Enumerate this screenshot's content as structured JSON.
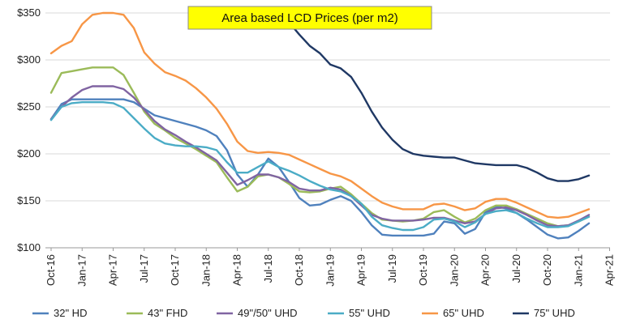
{
  "chart_data": {
    "type": "line",
    "title": "Area based LCD Prices (per m2)",
    "xlabel": "",
    "ylabel": "",
    "ylim": [
      100,
      350
    ],
    "yticks": [
      "$100",
      "$150",
      "$200",
      "$250",
      "$300",
      "$350"
    ],
    "ytick_values": [
      100,
      150,
      200,
      250,
      300,
      350
    ],
    "x_start": "Oct-16",
    "x_end": "Jun-21",
    "xtick_labels": [
      "Oct-16",
      "Jan-17",
      "Apr-17",
      "Jul-17",
      "Oct-17",
      "Jan-18",
      "Apr-18",
      "Jul-18",
      "Oct-18",
      "Jan-19",
      "Apr-19",
      "Jul-19",
      "Oct-19",
      "Jan-20",
      "Apr-20",
      "Jul-20",
      "Oct-20",
      "Jan-21",
      "Apr-21"
    ],
    "grid": "horizontal",
    "legend": "bottom",
    "series": [
      {
        "name": "32\" HD",
        "color": "#4f81bd",
        "values": [
          [
            0,
            237
          ],
          [
            1,
            253
          ],
          [
            2,
            258
          ],
          [
            3,
            258
          ],
          [
            4,
            258
          ],
          [
            5,
            258
          ],
          [
            6,
            258
          ],
          [
            7,
            258
          ],
          [
            8,
            255
          ],
          [
            9,
            248
          ],
          [
            10,
            241
          ],
          [
            11,
            238
          ],
          [
            12,
            235
          ],
          [
            13,
            232
          ],
          [
            14,
            229
          ],
          [
            15,
            225
          ],
          [
            16,
            219
          ],
          [
            17,
            204
          ],
          [
            18,
            178
          ],
          [
            19,
            165
          ],
          [
            20,
            178
          ],
          [
            21,
            195
          ],
          [
            22,
            186
          ],
          [
            23,
            170
          ],
          [
            24,
            153
          ],
          [
            25,
            145
          ],
          [
            26,
            146
          ],
          [
            27,
            151
          ],
          [
            28,
            155
          ],
          [
            29,
            150
          ],
          [
            30,
            138
          ],
          [
            31,
            124
          ],
          [
            32,
            114
          ],
          [
            33,
            113
          ],
          [
            34,
            113
          ],
          [
            35,
            113
          ],
          [
            36,
            113
          ],
          [
            37,
            115
          ],
          [
            38,
            128
          ],
          [
            39,
            126
          ],
          [
            40,
            115
          ],
          [
            41,
            120
          ],
          [
            42,
            138
          ],
          [
            43,
            144
          ],
          [
            44,
            142
          ],
          [
            45,
            137
          ],
          [
            46,
            130
          ],
          [
            47,
            122
          ],
          [
            48,
            114
          ],
          [
            49,
            110
          ],
          [
            50,
            111
          ],
          [
            51,
            118
          ],
          [
            52,
            126
          ]
        ]
      },
      {
        "name": "43\" FHD",
        "color": "#9bbb59",
        "values": [
          [
            0,
            265
          ],
          [
            1,
            286
          ],
          [
            2,
            288
          ],
          [
            3,
            290
          ],
          [
            4,
            292
          ],
          [
            5,
            292
          ],
          [
            6,
            292
          ],
          [
            7,
            284
          ],
          [
            8,
            265
          ],
          [
            9,
            245
          ],
          [
            10,
            232
          ],
          [
            11,
            225
          ],
          [
            12,
            217
          ],
          [
            13,
            211
          ],
          [
            14,
            205
          ],
          [
            15,
            198
          ],
          [
            16,
            191
          ],
          [
            17,
            175
          ],
          [
            18,
            160
          ],
          [
            19,
            165
          ],
          [
            20,
            176
          ],
          [
            21,
            178
          ],
          [
            22,
            175
          ],
          [
            23,
            168
          ],
          [
            24,
            160
          ],
          [
            25,
            159
          ],
          [
            26,
            160
          ],
          [
            27,
            163
          ],
          [
            28,
            165
          ],
          [
            29,
            157
          ],
          [
            30,
            147
          ],
          [
            31,
            137
          ],
          [
            32,
            130
          ],
          [
            33,
            129
          ],
          [
            34,
            128
          ],
          [
            35,
            129
          ],
          [
            36,
            131
          ],
          [
            37,
            138
          ],
          [
            38,
            140
          ],
          [
            39,
            133
          ],
          [
            40,
            127
          ],
          [
            41,
            131
          ],
          [
            42,
            140
          ],
          [
            43,
            145
          ],
          [
            44,
            145
          ],
          [
            45,
            141
          ],
          [
            46,
            136
          ],
          [
            47,
            131
          ],
          [
            48,
            126
          ],
          [
            49,
            123
          ],
          [
            50,
            124
          ],
          [
            51,
            128
          ],
          [
            52,
            133
          ]
        ]
      },
      {
        "name": "49\"/50\" UHD",
        "color": "#8064a2",
        "values": [
          [
            0,
            237
          ],
          [
            1,
            250
          ],
          [
            2,
            260
          ],
          [
            3,
            268
          ],
          [
            4,
            272
          ],
          [
            5,
            272
          ],
          [
            6,
            272
          ],
          [
            7,
            269
          ],
          [
            8,
            260
          ],
          [
            9,
            247
          ],
          [
            10,
            235
          ],
          [
            11,
            226
          ],
          [
            12,
            220
          ],
          [
            13,
            213
          ],
          [
            14,
            207
          ],
          [
            15,
            200
          ],
          [
            16,
            193
          ],
          [
            17,
            180
          ],
          [
            18,
            167
          ],
          [
            19,
            172
          ],
          [
            20,
            178
          ],
          [
            21,
            178
          ],
          [
            22,
            175
          ],
          [
            23,
            170
          ],
          [
            24,
            163
          ],
          [
            25,
            161
          ],
          [
            26,
            161
          ],
          [
            27,
            164
          ],
          [
            28,
            162
          ],
          [
            29,
            155
          ],
          [
            30,
            145
          ],
          [
            31,
            135
          ],
          [
            32,
            131
          ],
          [
            33,
            129
          ],
          [
            34,
            129
          ],
          [
            35,
            129
          ],
          [
            36,
            130
          ],
          [
            37,
            132
          ],
          [
            38,
            132
          ],
          [
            39,
            129
          ],
          [
            40,
            126
          ],
          [
            41,
            128
          ],
          [
            42,
            136
          ],
          [
            43,
            142
          ],
          [
            44,
            143
          ],
          [
            45,
            140
          ],
          [
            46,
            135
          ],
          [
            47,
            129
          ],
          [
            48,
            124
          ],
          [
            49,
            123
          ],
          [
            50,
            124
          ],
          [
            51,
            129
          ],
          [
            52,
            135
          ]
        ]
      },
      {
        "name": "55\" UHD",
        "color": "#4bacc6",
        "values": [
          [
            0,
            236
          ],
          [
            1,
            250
          ],
          [
            2,
            254
          ],
          [
            3,
            255
          ],
          [
            4,
            255
          ],
          [
            5,
            255
          ],
          [
            6,
            254
          ],
          [
            7,
            249
          ],
          [
            8,
            238
          ],
          [
            9,
            227
          ],
          [
            10,
            217
          ],
          [
            11,
            211
          ],
          [
            12,
            209
          ],
          [
            13,
            208
          ],
          [
            14,
            208
          ],
          [
            15,
            207
          ],
          [
            16,
            204
          ],
          [
            17,
            191
          ],
          [
            18,
            180
          ],
          [
            19,
            180
          ],
          [
            20,
            186
          ],
          [
            21,
            192
          ],
          [
            22,
            186
          ],
          [
            23,
            182
          ],
          [
            24,
            177
          ],
          [
            25,
            171
          ],
          [
            26,
            166
          ],
          [
            27,
            162
          ],
          [
            28,
            160
          ],
          [
            29,
            155
          ],
          [
            30,
            147
          ],
          [
            31,
            133
          ],
          [
            32,
            124
          ],
          [
            33,
            121
          ],
          [
            34,
            119
          ],
          [
            35,
            119
          ],
          [
            36,
            122
          ],
          [
            37,
            130
          ],
          [
            38,
            131
          ],
          [
            39,
            128
          ],
          [
            40,
            122
          ],
          [
            41,
            127
          ],
          [
            42,
            136
          ],
          [
            43,
            139
          ],
          [
            44,
            140
          ],
          [
            45,
            137
          ],
          [
            46,
            131
          ],
          [
            47,
            126
          ],
          [
            48,
            122
          ],
          [
            49,
            122
          ],
          [
            50,
            123
          ],
          [
            51,
            128
          ],
          [
            52,
            133
          ]
        ]
      },
      {
        "name": "65\" UHD",
        "color": "#f79646",
        "values": [
          [
            0,
            307
          ],
          [
            1,
            315
          ],
          [
            2,
            320
          ],
          [
            3,
            338
          ],
          [
            4,
            348
          ],
          [
            5,
            350
          ],
          [
            6,
            350
          ],
          [
            7,
            348
          ],
          [
            8,
            334
          ],
          [
            9,
            308
          ],
          [
            10,
            296
          ],
          [
            11,
            287
          ],
          [
            12,
            283
          ],
          [
            13,
            278
          ],
          [
            14,
            270
          ],
          [
            15,
            260
          ],
          [
            16,
            248
          ],
          [
            17,
            232
          ],
          [
            18,
            213
          ],
          [
            19,
            203
          ],
          [
            20,
            201
          ],
          [
            21,
            202
          ],
          [
            22,
            201
          ],
          [
            23,
            199
          ],
          [
            24,
            194
          ],
          [
            25,
            189
          ],
          [
            26,
            184
          ],
          [
            27,
            179
          ],
          [
            28,
            176
          ],
          [
            29,
            171
          ],
          [
            30,
            163
          ],
          [
            31,
            155
          ],
          [
            32,
            148
          ],
          [
            33,
            144
          ],
          [
            34,
            141
          ],
          [
            35,
            141
          ],
          [
            36,
            141
          ],
          [
            37,
            146
          ],
          [
            38,
            147
          ],
          [
            39,
            144
          ],
          [
            40,
            140
          ],
          [
            41,
            142
          ],
          [
            42,
            149
          ],
          [
            43,
            152
          ],
          [
            44,
            152
          ],
          [
            45,
            148
          ],
          [
            46,
            143
          ],
          [
            47,
            138
          ],
          [
            48,
            133
          ],
          [
            49,
            132
          ],
          [
            50,
            133
          ],
          [
            51,
            137
          ],
          [
            52,
            141
          ]
        ]
      },
      {
        "name": "75\" UHD",
        "color": "#1f3864",
        "values": [
          [
            23,
            340
          ],
          [
            24,
            327
          ],
          [
            25,
            315
          ],
          [
            26,
            307
          ],
          [
            27,
            295
          ],
          [
            28,
            291
          ],
          [
            29,
            282
          ],
          [
            30,
            265
          ],
          [
            31,
            245
          ],
          [
            32,
            228
          ],
          [
            33,
            215
          ],
          [
            34,
            205
          ],
          [
            35,
            200
          ],
          [
            36,
            198
          ],
          [
            37,
            197
          ],
          [
            38,
            196
          ],
          [
            39,
            196
          ],
          [
            40,
            193
          ],
          [
            41,
            190
          ],
          [
            42,
            189
          ],
          [
            43,
            188
          ],
          [
            44,
            188
          ],
          [
            45,
            188
          ],
          [
            46,
            185
          ],
          [
            47,
            180
          ],
          [
            48,
            174
          ],
          [
            49,
            171
          ],
          [
            50,
            171
          ],
          [
            51,
            173
          ],
          [
            52,
            177
          ]
        ]
      }
    ]
  }
}
